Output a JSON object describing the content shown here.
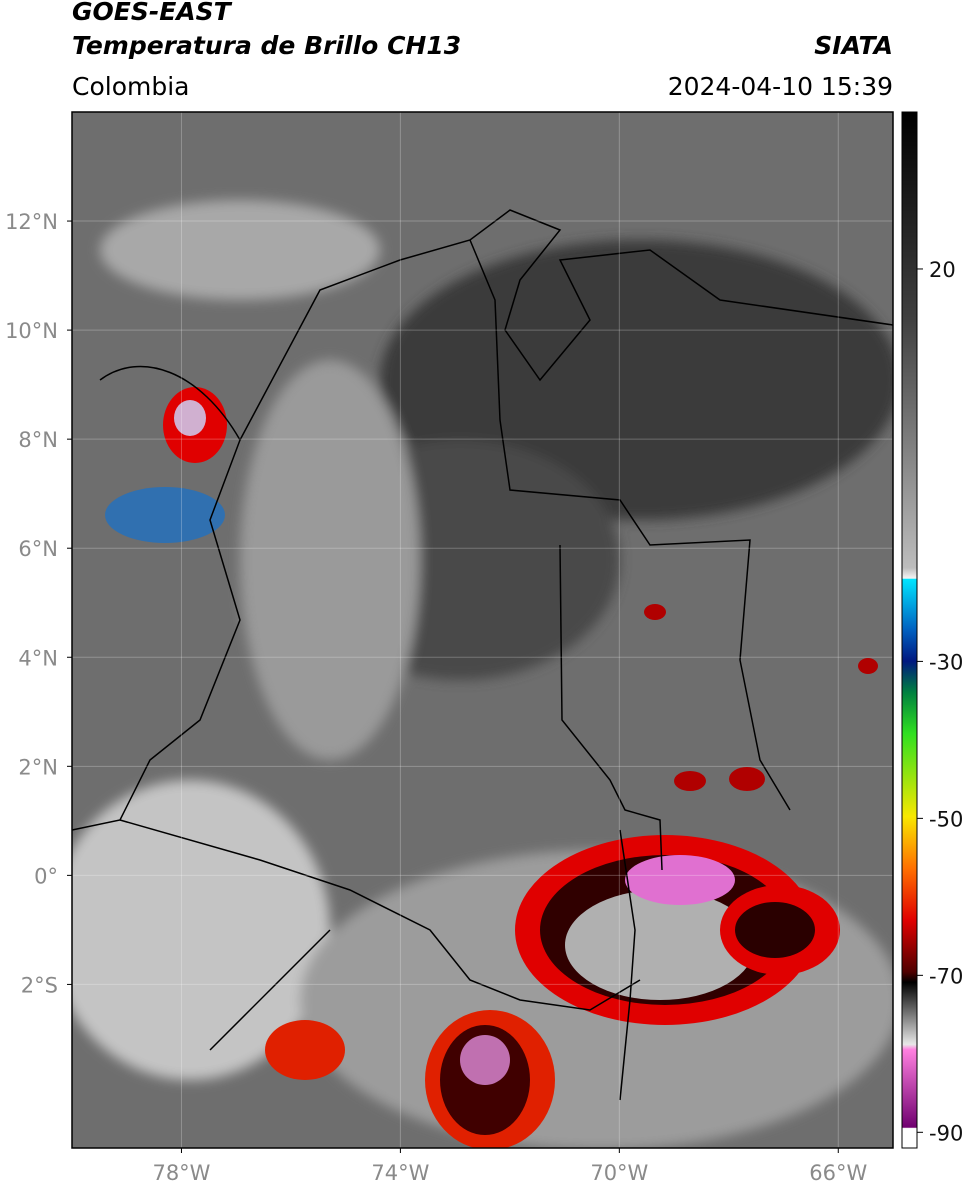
{
  "header": {
    "satellite": "GOES-EAST",
    "product": "Temperatura de Brillo CH13",
    "agency": "SIATA",
    "region": "Colombia",
    "datetime": "2024-04-10 15:39"
  },
  "map": {
    "xlim": [
      -80,
      -65
    ],
    "ylim": [
      -5,
      14
    ],
    "grid": true,
    "xticks": [
      {
        "value": -78,
        "label": "78°W"
      },
      {
        "value": -74,
        "label": "74°W"
      },
      {
        "value": -70,
        "label": "70°W"
      },
      {
        "value": -66,
        "label": "66°W"
      }
    ],
    "yticks": [
      {
        "value": 12,
        "label": "12°N"
      },
      {
        "value": 10,
        "label": "10°N"
      },
      {
        "value": 8,
        "label": "8°N"
      },
      {
        "value": 6,
        "label": "6°N"
      },
      {
        "value": 4,
        "label": "4°N"
      },
      {
        "value": 2,
        "label": "2°N"
      },
      {
        "value": 0,
        "label": "0°"
      },
      {
        "value": -2,
        "label": "2°S"
      }
    ]
  },
  "colorbar": {
    "lim": [
      -92,
      40
    ],
    "ticks": [
      20,
      -30,
      -50,
      -70,
      -90
    ]
  }
}
